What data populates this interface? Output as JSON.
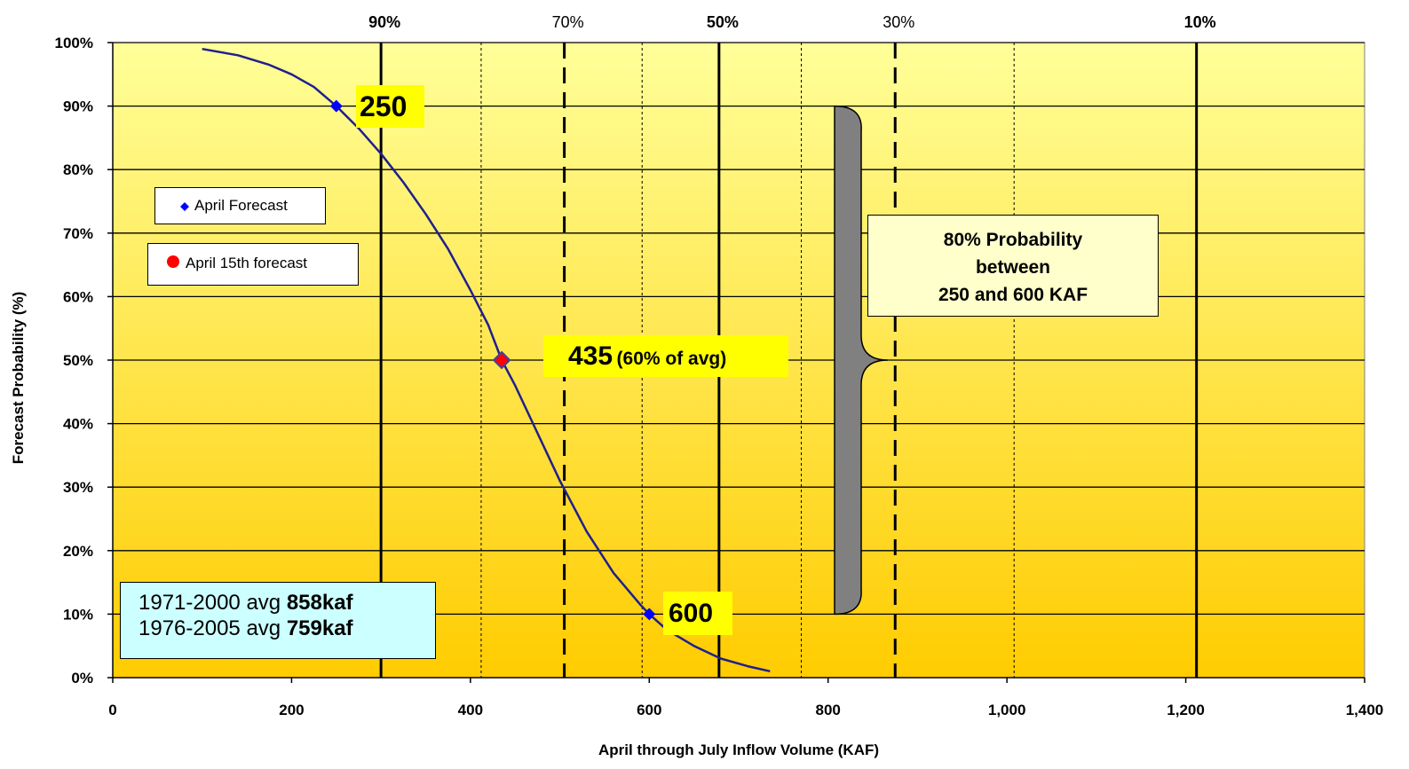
{
  "chart_data": {
    "type": "line",
    "xlabel": "April through  July Inflow Volume (KAF)",
    "ylabel": "Forecast Probability (%)",
    "xlim": [
      0,
      1400
    ],
    "ylim": [
      0,
      100
    ],
    "x_ticks": [
      0,
      200,
      400,
      600,
      800,
      1000,
      1200,
      1400
    ],
    "x_tick_labels": [
      "0",
      "200",
      "400",
      "600",
      "800",
      "1,000",
      "1,200",
      "1,400"
    ],
    "y_ticks": [
      0,
      10,
      20,
      30,
      40,
      50,
      60,
      70,
      80,
      90,
      100
    ],
    "y_tick_labels": [
      "0%",
      "10%",
      "20%",
      "30%",
      "40%",
      "50%",
      "60%",
      "70%",
      "80%",
      "90%",
      "100%"
    ],
    "grid": true,
    "background_gradient": [
      "#ffff99",
      "#ffcc00"
    ],
    "series": [
      {
        "name": "April Forecast",
        "color": "#1f1f8f",
        "marker_color": "#0000ff",
        "marker_points": [
          [
            250,
            90
          ],
          [
            600,
            10
          ]
        ],
        "x": [
          100,
          140,
          175,
          200,
          225,
          250,
          275,
          300,
          325,
          350,
          375,
          400,
          420,
          435,
          450,
          470,
          500,
          530,
          560,
          590,
          600,
          620,
          650,
          680,
          710,
          735
        ],
        "y": [
          99,
          98,
          96.5,
          95,
          93,
          90,
          86.5,
          82.5,
          78,
          73,
          67.5,
          61,
          55.5,
          50,
          46,
          40,
          31,
          23,
          16.5,
          11.5,
          10,
          7.5,
          5,
          3,
          1.8,
          1
        ]
      },
      {
        "name": "April 15th forecast",
        "color": "#ff0000",
        "marker_points": [
          [
            435,
            50
          ]
        ]
      }
    ],
    "percentile_lines": [
      {
        "label": "90%",
        "x": 300,
        "style": "solid",
        "bold": true
      },
      {
        "label": "",
        "x": 412,
        "style": "dotted",
        "bold": false
      },
      {
        "label": "70%",
        "x": 505,
        "style": "dashed",
        "bold": false
      },
      {
        "label": "",
        "x": 592,
        "style": "dotted",
        "bold": false
      },
      {
        "label": "50%",
        "x": 678,
        "style": "solid",
        "bold": true
      },
      {
        "label": "",
        "x": 770,
        "style": "dotted",
        "bold": false
      },
      {
        "label": "30%",
        "x": 875,
        "style": "dashed",
        "bold": false
      },
      {
        "label": "",
        "x": 1008,
        "style": "dotted",
        "bold": false
      },
      {
        "label": "10%",
        "x": 1212,
        "style": "solid",
        "bold": true
      }
    ],
    "annotations": {
      "label_250": "250",
      "label_435": "435",
      "label_435_pct": "(60% of avg)",
      "label_600": "600",
      "range_box_line1": "80% Probability",
      "range_box_line2": "between",
      "range_box_line3": "250 and 600 KAF",
      "range_brace": {
        "y_top": 90,
        "y_bottom": 10,
        "y_mid": 50
      }
    },
    "averages": {
      "line1_prefix": "1971-2000 avg ",
      "line1_value": "858kaf",
      "line2_prefix": "1976-2005 avg ",
      "line2_value": "759kaf"
    },
    "legend": {
      "april_forecast": "April Forecast",
      "april_15th": "April 15th forecast"
    }
  }
}
